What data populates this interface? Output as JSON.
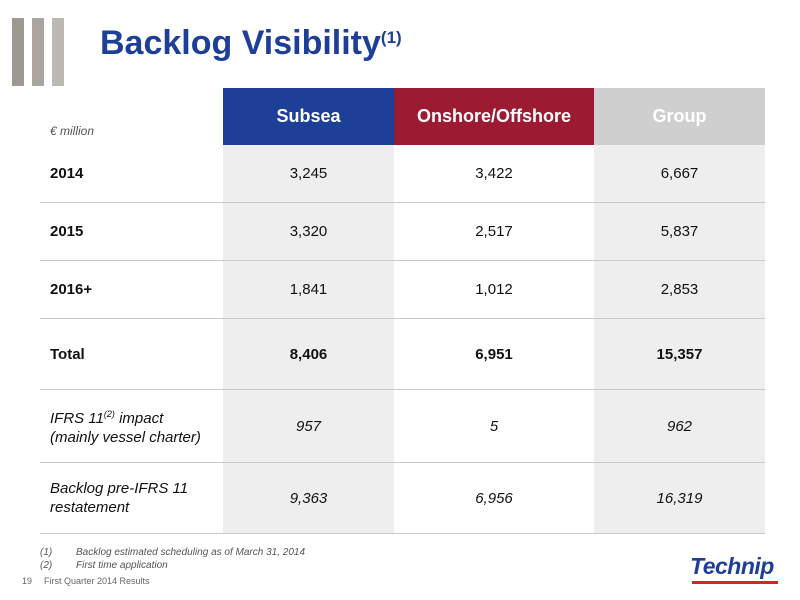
{
  "title": "Backlog Visibility",
  "title_sup": "(1)",
  "unit": "€ million",
  "columns": [
    {
      "label": "Subsea",
      "color": "#1e3f97"
    },
    {
      "label": "Onshore/Offshore",
      "color": "#9c1b32"
    },
    {
      "label": "Group",
      "color": "#cfcfcf"
    }
  ],
  "rows": [
    {
      "label": "2014",
      "values": [
        "3,245",
        "3,422",
        "6,667"
      ]
    },
    {
      "label": "2015",
      "values": [
        "3,320",
        "2,517",
        "5,837"
      ]
    },
    {
      "label": "2016+",
      "values": [
        "1,841",
        "1,012",
        "2,853"
      ]
    },
    {
      "label": "Total",
      "values": [
        "8,406",
        "6,951",
        "15,357"
      ]
    },
    {
      "label_line1": "IFRS 11",
      "label_sup": "(2)",
      "label_line1_tail": " impact",
      "label_line2": "(mainly vessel charter)",
      "values": [
        "957",
        "5",
        "962"
      ]
    },
    {
      "label_line1": "Backlog pre-IFRS 11",
      "label_line2": "restatement",
      "values": [
        "9,363",
        "6,956",
        "16,319"
      ]
    }
  ],
  "notes": [
    {
      "key": "(1)",
      "text": "Backlog estimated scheduling as of March 31, 2014"
    },
    {
      "key": "(2)",
      "text": "First time application"
    }
  ],
  "footer": {
    "page": "19",
    "text": "First Quarter 2014 Results"
  },
  "logo": "Technip"
}
